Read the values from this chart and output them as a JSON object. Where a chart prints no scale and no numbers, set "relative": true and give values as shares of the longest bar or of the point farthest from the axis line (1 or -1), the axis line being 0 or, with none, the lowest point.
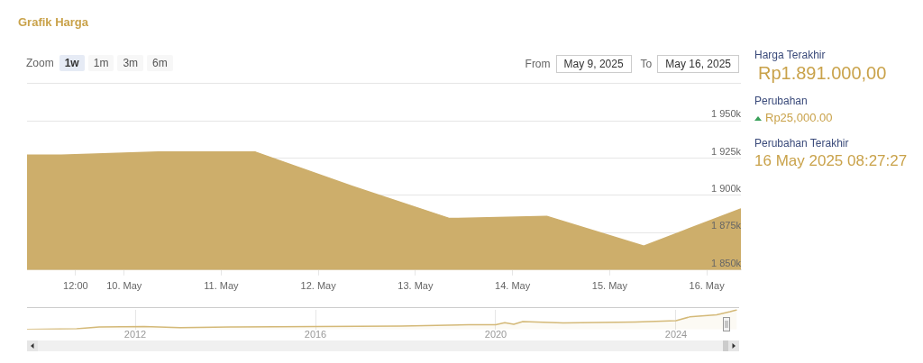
{
  "chart_data": [
    {
      "type": "area",
      "title": "Grafik Harga",
      "annotations": [
        "Zoom",
        "1w",
        "1m",
        "3m",
        "6m",
        "From",
        "May 9, 2025",
        "To",
        "May 16, 2025",
        "Harga Terakhir",
        "Rp1.891.000,00",
        "Perubahan",
        "Rp25,000.00",
        "Perubahan Terakhir",
        "16 May 2025 08:27:27"
      ],
      "x": [
        "2025-05-09T00:00",
        "2025-05-09T08:27",
        "2025-05-10T08:27",
        "2025-05-11T08:27",
        "2025-05-12T08:27",
        "2025-05-13T08:27",
        "2025-05-14T08:27",
        "2025-05-15T08:27",
        "2025-05-16T08:27"
      ],
      "series": [
        {
          "color": "#cdae6b",
          "values": [
            1927000,
            1927000,
            1929000,
            1929000,
            1906000,
            1884500,
            1886000,
            1866000,
            1891000
          ]
        }
      ],
      "xlim": [
        "2025-05-09T00:00",
        "2025-05-16T08:27"
      ],
      "xticks": [
        {
          "value": "2025-05-09T12:00",
          "label": "12:00"
        },
        {
          "value": "2025-05-10",
          "label": "10. May"
        },
        {
          "value": "2025-05-11",
          "label": "11. May"
        },
        {
          "value": "2025-05-12",
          "label": "12. May"
        },
        {
          "value": "2025-05-13",
          "label": "13. May"
        },
        {
          "value": "2025-05-14",
          "label": "14. May"
        },
        {
          "value": "2025-05-15",
          "label": "15. May"
        },
        {
          "value": "2025-05-16",
          "label": "16. May"
        }
      ],
      "ylim": [
        1850000,
        1975000
      ],
      "yticks": [
        {
          "value": 1850000,
          "label": "1 850k"
        },
        {
          "value": 1875000,
          "label": "1 875k"
        },
        {
          "value": 1900000,
          "label": "1 900k"
        },
        {
          "value": 1925000,
          "label": "1 925k"
        },
        {
          "value": 1950000,
          "label": "1 950k"
        },
        {
          "value": 1975000,
          "label": null
        }
      ],
      "grid": "y"
    },
    {
      "type": "area",
      "relative": true,
      "x": [
        2009.6,
        2010.7,
        2011.2,
        2012.2,
        2013.0,
        2014.2,
        2016.0,
        2017.9,
        2019.4,
        2020.0,
        2020.2,
        2020.4,
        2020.6,
        2021.5,
        2023.1,
        2024.0,
        2024.3,
        2024.9,
        2025.2,
        2025.35
      ],
      "series": [
        {
          "color": "#d4b978",
          "values": [
            0,
            0.04,
            0.13,
            0.15,
            0.09,
            0.13,
            0.15,
            0.18,
            0.24,
            0.24,
            0.35,
            0.27,
            0.4,
            0.33,
            0.38,
            0.45,
            0.64,
            0.75,
            0.91,
            1
          ]
        }
      ],
      "xlim": [
        2009.6,
        2025.4
      ],
      "xticks": [
        2012,
        2016,
        2020,
        2024
      ],
      "grid": "x"
    }
  ]
}
